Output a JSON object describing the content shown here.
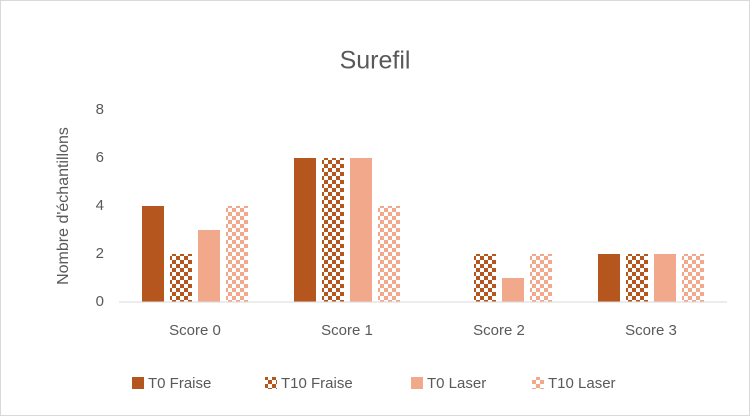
{
  "chart_data": {
    "type": "bar",
    "title": "Surefil",
    "y_label": "Nombre d'échantillons",
    "categories": [
      "Score 0",
      "Score 1",
      "Score 2",
      "Score 3"
    ],
    "series": [
      {
        "name": "T0 Fraise",
        "color": "#b5561f",
        "pattern": "solid",
        "values": [
          4,
          6,
          0,
          2
        ]
      },
      {
        "name": "T10 Fraise",
        "color": "#b5561f",
        "pattern": "checkerboard",
        "values": [
          2,
          6,
          2,
          2
        ]
      },
      {
        "name": "T0 Laser",
        "color": "#f2a88b",
        "pattern": "solid",
        "values": [
          3,
          6,
          1,
          2
        ]
      },
      {
        "name": "T10 Laser",
        "color": "#f2a88b",
        "pattern": "checkerboard",
        "values": [
          4,
          4,
          2,
          2
        ]
      }
    ],
    "ylim": [
      0,
      8
    ],
    "yticks": [
      0,
      2,
      4,
      6,
      8
    ],
    "grid": false,
    "legend": "bottom"
  }
}
